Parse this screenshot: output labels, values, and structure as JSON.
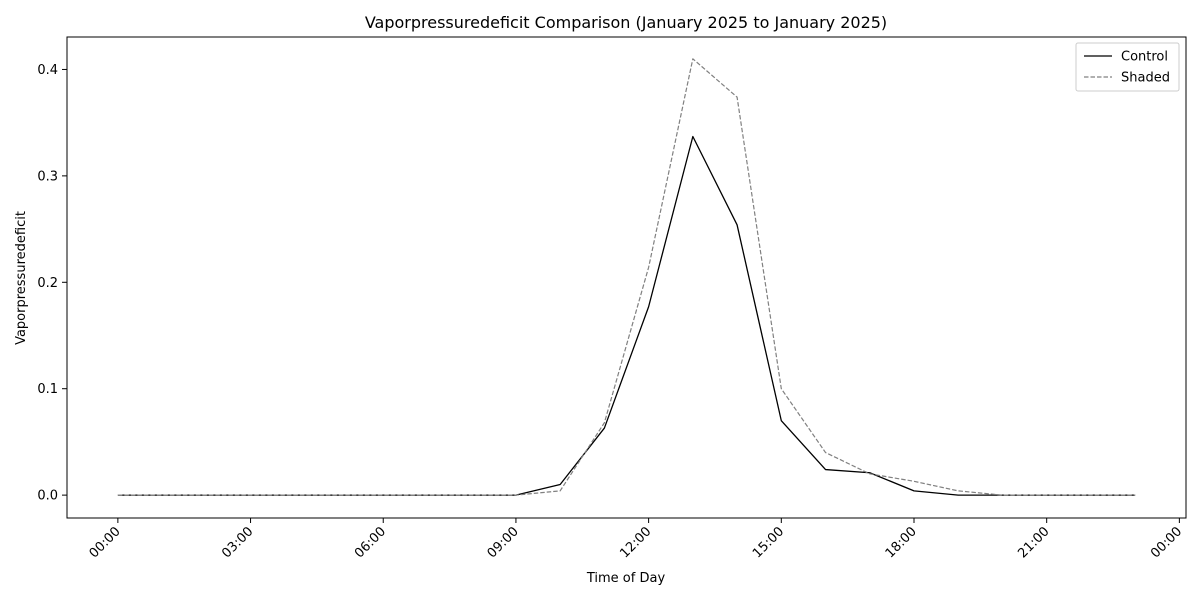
{
  "chart_data": {
    "type": "line",
    "title": "Vaporpressuredeficit Comparison (January 2025 to January 2025)",
    "xlabel": "Time of Day",
    "ylabel": "Vaporpressuredeficit",
    "x_unit": "hours",
    "xlim": [
      -1.15,
      24.15
    ],
    "ylim": [
      -0.0215,
      0.4305
    ],
    "x_ticks": [
      0,
      3,
      6,
      9,
      12,
      15,
      18,
      21,
      24
    ],
    "x_tick_labels": [
      "00:00",
      "03:00",
      "06:00",
      "09:00",
      "12:00",
      "15:00",
      "18:00",
      "21:00",
      "00:00"
    ],
    "y_ticks": [
      0.0,
      0.1,
      0.2,
      0.3,
      0.4
    ],
    "y_tick_labels": [
      "0.0",
      "0.1",
      "0.2",
      "0.3",
      "0.4"
    ],
    "grid": false,
    "legend_position": "top-right",
    "x": [
      0,
      1,
      2,
      3,
      4,
      5,
      6,
      7,
      8,
      9,
      10,
      11,
      12,
      13,
      14,
      15,
      16,
      17,
      18,
      19,
      20,
      21,
      22,
      23
    ],
    "series": [
      {
        "name": "Control",
        "color": "#000000",
        "style": "solid",
        "values": [
          0,
          0,
          0,
          0,
          0,
          0,
          0,
          0,
          0,
          0,
          0.01,
          0.063,
          0.177,
          0.337,
          0.254,
          0.07,
          0.024,
          0.021,
          0.004,
          0,
          0,
          0,
          0,
          0
        ]
      },
      {
        "name": "Shaded",
        "color": "#808080",
        "style": "dashed",
        "values": [
          0,
          0,
          0,
          0,
          0,
          0,
          0,
          0,
          0,
          0,
          0.004,
          0.068,
          0.214,
          0.41,
          0.374,
          0.1,
          0.04,
          0.02,
          0.013,
          0.004,
          0,
          0,
          0,
          0
        ]
      }
    ]
  }
}
